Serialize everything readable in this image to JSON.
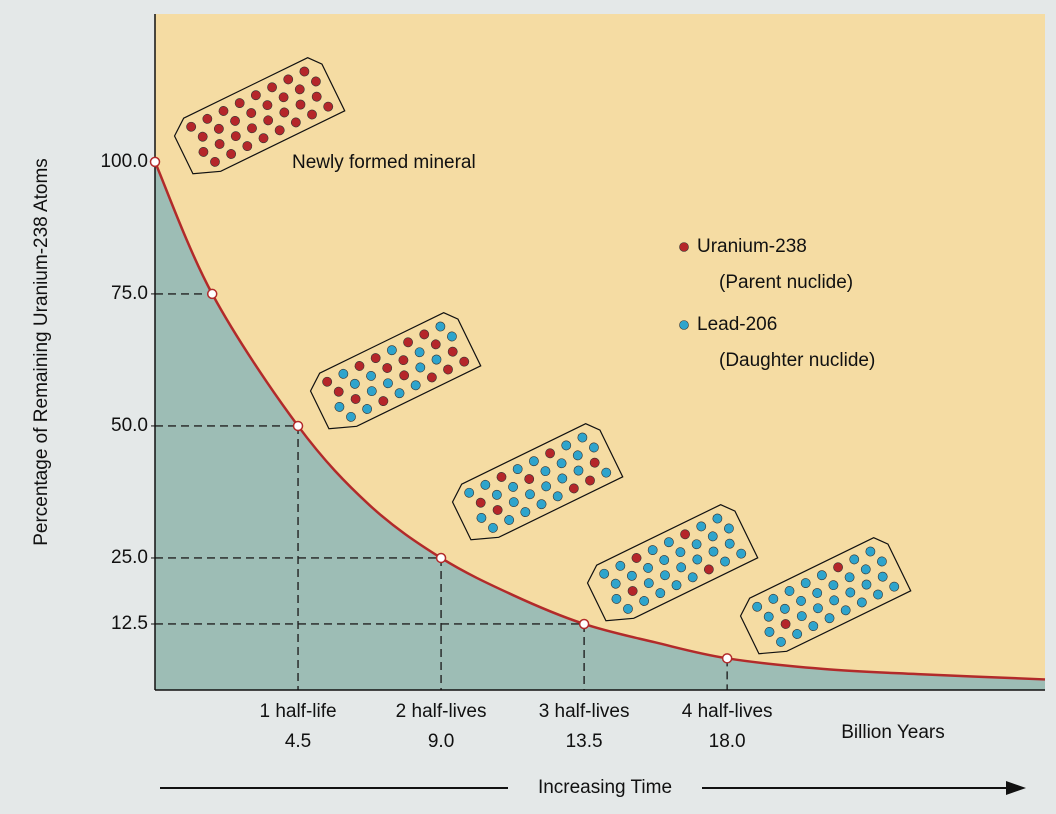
{
  "chart_data": {
    "type": "line",
    "y_label": "Percentage of Remaining Uranium-238 Atoms",
    "x_unit_label": "Billion Years",
    "time_label": "Increasing Time",
    "annotation": "Newly formed mineral",
    "xlim": [
      0,
      28
    ],
    "ylim": [
      0,
      128
    ],
    "xticks": [
      4.5,
      {
        "value": 9,
        "label": "9.0"
      },
      13.5,
      {
        "value": 18,
        "label": "18.0"
      }
    ],
    "half_life_labels": [
      "1 half-life",
      "2 half-lives",
      "3 half-lives",
      "4 half-lives"
    ],
    "yticks": [
      12.5,
      {
        "value": 25,
        "label": "25.0"
      },
      {
        "value": 50,
        "label": "50.0"
      },
      {
        "value": 75,
        "label": "75.0"
      },
      {
        "value": 100,
        "label": "100.0"
      }
    ],
    "curve": {
      "color": "#b22a2a",
      "x": [
        0,
        1.8,
        4.5,
        6.75,
        9,
        11.25,
        13.5,
        15.75,
        18,
        21,
        24,
        28
      ],
      "y": [
        100,
        75,
        50,
        35,
        25,
        18,
        12.5,
        9,
        6,
        4,
        3,
        2
      ]
    },
    "points": {
      "x": [
        0,
        1.8,
        4.5,
        9,
        13.5,
        18
      ],
      "y": [
        100,
        75,
        50,
        25,
        12.5,
        6
      ]
    },
    "area_color": "#9dbdb5",
    "plot_color": "#f5dca3",
    "legend": [
      {
        "name": "Uranium-238",
        "note": "(Parent nuclide)",
        "color": "#b5262a"
      },
      {
        "name": "Lead-206",
        "note": "(Daughter nuclide)",
        "color": "#2ea4cc"
      }
    ]
  }
}
